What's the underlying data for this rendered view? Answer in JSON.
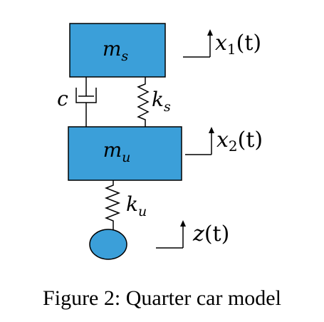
{
  "diagram": {
    "masses": {
      "sprung": {
        "symbol": "m",
        "subscript": "s"
      },
      "unsprung": {
        "symbol": "m",
        "subscript": "u"
      }
    },
    "damper": {
      "label": "c"
    },
    "springs": {
      "suspension": {
        "symbol": "k",
        "subscript": "s"
      },
      "tire": {
        "symbol": "k",
        "subscript": "u"
      }
    },
    "displacements": {
      "x1": {
        "base": "x",
        "subscript": "1",
        "arg": "(t)"
      },
      "x2": {
        "base": "x",
        "subscript": "2",
        "arg": "(t)"
      },
      "z": {
        "base": "z",
        "subscript": "",
        "arg": "(t)"
      }
    },
    "colors": {
      "mass_fill": "#3b9fd9",
      "stroke": "#000000"
    }
  },
  "caption": {
    "text": "Figure 2: Quarter car model"
  }
}
